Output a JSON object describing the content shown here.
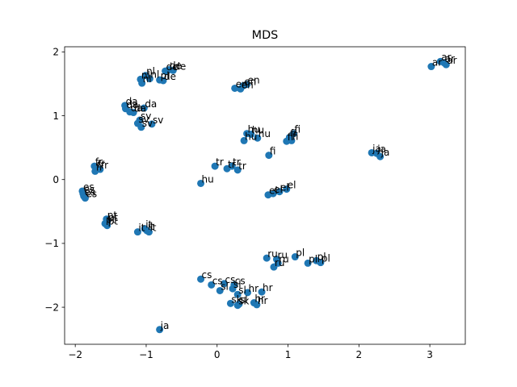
{
  "chart_data": {
    "type": "scatter",
    "title": "MDS",
    "xlabel": "",
    "ylabel": "",
    "xlim": [
      -2.15,
      3.5
    ],
    "ylim": [
      -2.58,
      2.08
    ],
    "xticks": [
      -2,
      -1,
      0,
      1,
      2,
      3
    ],
    "yticks": [
      -2,
      -1,
      0,
      1,
      2
    ],
    "grid": false,
    "marker_color": "#1f77b4",
    "points": [
      {
        "x": 3.02,
        "y": 1.77,
        "label": "ar"
      },
      {
        "x": 3.15,
        "y": 1.85,
        "label": "ar"
      },
      {
        "x": 3.2,
        "y": 1.83,
        "label": "ar"
      },
      {
        "x": 3.23,
        "y": 1.8,
        "label": "ar"
      },
      {
        "x": -0.81,
        "y": 1.56,
        "label": "pl"
      },
      {
        "x": -1.01,
        "y": 1.63,
        "label": "nl"
      },
      {
        "x": -1.08,
        "y": 1.57,
        "label": "nl"
      },
      {
        "x": -1.06,
        "y": 1.51,
        "label": "nl"
      },
      {
        "x": -0.95,
        "y": 1.58,
        "label": "nl"
      },
      {
        "x": -0.73,
        "y": 1.7,
        "label": "de"
      },
      {
        "x": -0.68,
        "y": 1.72,
        "label": "de"
      },
      {
        "x": -0.62,
        "y": 1.71,
        "label": "de"
      },
      {
        "x": -0.76,
        "y": 1.55,
        "label": "de"
      },
      {
        "x": 0.25,
        "y": 1.43,
        "label": "en"
      },
      {
        "x": 0.33,
        "y": 1.42,
        "label": "en"
      },
      {
        "x": 0.37,
        "y": 1.47,
        "label": "en"
      },
      {
        "x": 0.42,
        "y": 1.49,
        "label": "en"
      },
      {
        "x": -1.3,
        "y": 1.16,
        "label": "da"
      },
      {
        "x": -1.29,
        "y": 1.11,
        "label": "da"
      },
      {
        "x": -1.23,
        "y": 1.06,
        "label": "da"
      },
      {
        "x": -1.18,
        "y": 1.05,
        "label": "da"
      },
      {
        "x": -1.03,
        "y": 1.12,
        "label": "da"
      },
      {
        "x": -1.09,
        "y": 0.93,
        "label": "sv"
      },
      {
        "x": -1.12,
        "y": 0.88,
        "label": "sv"
      },
      {
        "x": -1.07,
        "y": 0.82,
        "label": "sv"
      },
      {
        "x": -0.92,
        "y": 0.87,
        "label": "sv"
      },
      {
        "x": 0.42,
        "y": 0.72,
        "label": "hu"
      },
      {
        "x": 0.48,
        "y": 0.71,
        "label": "hu"
      },
      {
        "x": 0.38,
        "y": 0.61,
        "label": "hu"
      },
      {
        "x": 0.57,
        "y": 0.65,
        "label": "hu"
      },
      {
        "x": 1.08,
        "y": 0.72,
        "label": "fi"
      },
      {
        "x": 1.02,
        "y": 0.66,
        "label": "fi"
      },
      {
        "x": 0.98,
        "y": 0.6,
        "label": "fi"
      },
      {
        "x": 1.05,
        "y": 0.61,
        "label": "fi"
      },
      {
        "x": 0.73,
        "y": 0.38,
        "label": "fi"
      },
      {
        "x": 2.18,
        "y": 0.42,
        "label": "ja"
      },
      {
        "x": 2.25,
        "y": 0.41,
        "label": "ja"
      },
      {
        "x": 2.3,
        "y": 0.36,
        "label": "ja"
      },
      {
        "x": -1.73,
        "y": 0.21,
        "label": "fr"
      },
      {
        "x": -1.7,
        "y": 0.17,
        "label": "fr"
      },
      {
        "x": -1.65,
        "y": 0.16,
        "label": "fr"
      },
      {
        "x": -1.72,
        "y": 0.13,
        "label": "fr"
      },
      {
        "x": -0.03,
        "y": 0.21,
        "label": "tr"
      },
      {
        "x": 0.21,
        "y": 0.21,
        "label": "tr"
      },
      {
        "x": 0.14,
        "y": 0.17,
        "label": "tr"
      },
      {
        "x": 0.29,
        "y": 0.15,
        "label": "tr"
      },
      {
        "x": -0.23,
        "y": -0.06,
        "label": "hu"
      },
      {
        "x": 0.72,
        "y": -0.24,
        "label": "el"
      },
      {
        "x": 0.79,
        "y": -0.22,
        "label": "el"
      },
      {
        "x": 0.88,
        "y": -0.19,
        "label": "el"
      },
      {
        "x": 0.98,
        "y": -0.15,
        "label": "el"
      },
      {
        "x": -1.9,
        "y": -0.18,
        "label": "es"
      },
      {
        "x": -1.89,
        "y": -0.22,
        "label": "es"
      },
      {
        "x": -1.88,
        "y": -0.26,
        "label": "es"
      },
      {
        "x": -1.86,
        "y": -0.29,
        "label": "es"
      },
      {
        "x": -1.56,
        "y": -0.62,
        "label": "pt"
      },
      {
        "x": -1.55,
        "y": -0.66,
        "label": "pt"
      },
      {
        "x": -1.58,
        "y": -0.69,
        "label": "pt"
      },
      {
        "x": -1.55,
        "y": -0.72,
        "label": "pt"
      },
      {
        "x": -1.12,
        "y": -0.82,
        "label": "it"
      },
      {
        "x": -0.99,
        "y": -0.8,
        "label": "it"
      },
      {
        "x": -0.96,
        "y": -0.82,
        "label": "it"
      },
      {
        "x": -1.02,
        "y": -0.77,
        "label": "it"
      },
      {
        "x": 0.7,
        "y": -1.23,
        "label": "ru"
      },
      {
        "x": 0.84,
        "y": -1.25,
        "label": "ru"
      },
      {
        "x": 0.86,
        "y": -1.31,
        "label": "ru"
      },
      {
        "x": 0.8,
        "y": -1.37,
        "label": "ru"
      },
      {
        "x": 1.1,
        "y": -1.21,
        "label": "pl"
      },
      {
        "x": 1.28,
        "y": -1.31,
        "label": "pl"
      },
      {
        "x": 1.4,
        "y": -1.27,
        "label": "pl"
      },
      {
        "x": 1.46,
        "y": -1.3,
        "label": "pl"
      },
      {
        "x": -0.23,
        "y": -1.56,
        "label": "cs"
      },
      {
        "x": -0.08,
        "y": -1.65,
        "label": "cs"
      },
      {
        "x": 0.1,
        "y": -1.63,
        "label": "cs"
      },
      {
        "x": 0.24,
        "y": -1.65,
        "label": "cs"
      },
      {
        "x": 0.04,
        "y": -1.74,
        "label": "sl"
      },
      {
        "x": 0.22,
        "y": -1.71,
        "label": "sl"
      },
      {
        "x": 0.29,
        "y": -1.8,
        "label": "sl"
      },
      {
        "x": 0.43,
        "y": -1.77,
        "label": "hr"
      },
      {
        "x": 0.63,
        "y": -1.76,
        "label": "hr"
      },
      {
        "x": 0.52,
        "y": -1.93,
        "label": "hr"
      },
      {
        "x": 0.56,
        "y": -1.96,
        "label": "hr"
      },
      {
        "x": 0.19,
        "y": -1.94,
        "label": "sk"
      },
      {
        "x": 0.29,
        "y": -1.97,
        "label": "sk"
      },
      {
        "x": 0.31,
        "y": -1.95,
        "label": "sl"
      },
      {
        "x": -0.81,
        "y": -2.35,
        "label": "ja"
      }
    ]
  }
}
